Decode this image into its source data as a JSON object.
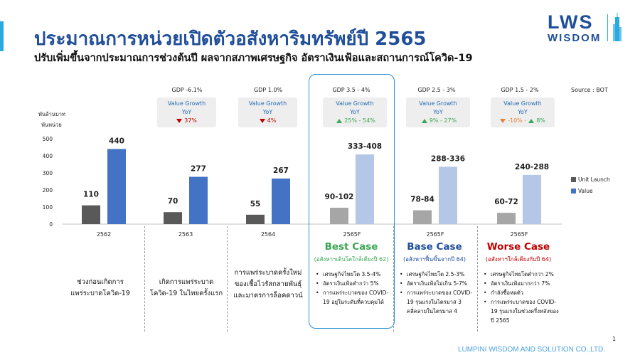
{
  "header": {
    "title": "ประมาณการหน่วยเปิดตัวอสังหาริมทรัพย์ปี 2565",
    "subtitle": "ปรับเพิ่มขึ้นจากประมาณการช่วงต้นปี ผลจากสภาพเศรษฐกิจ อัตราเงินเฟ้อและสถานการณ์โควิด-19"
  },
  "logo": {
    "line1": "LWS",
    "line2": "WISDOM"
  },
  "source": "Source : BOT",
  "unit_label": [
    "พันล้านบาท",
    "พันหน่วย"
  ],
  "gdp": [
    {
      "label": "GDP -6.1%",
      "l1": "Value Growth",
      "l2": "YoY",
      "value": "37%"
    },
    {
      "label": "GDP 1.0%",
      "l1": "Value Growth",
      "l2": "YoY",
      "value": "4%"
    },
    {
      "label": "GDP 3.5 - 4%",
      "l1": "Value Growth",
      "l2": "YoY",
      "value": "25% - 54%"
    },
    {
      "label": "GDP 2.5 - 3%",
      "l1": "Value Growth",
      "l2": "YoY",
      "value": "9% - 27%"
    },
    {
      "label": "GDP 1.5 - 2%",
      "l1": "Value Growth",
      "l2": "YoY",
      "value_a": "-10% -",
      "value_b": "8%"
    }
  ],
  "colors": {
    "unit_2562": "#595959",
    "value_2562": "#4472c4",
    "unit_forecast": "#a6a6a6",
    "value_forecast": "#b4c7e7",
    "best": "#3aa653",
    "base": "#3aa653",
    "worse": "#c00000",
    "title": "#1f4e9a"
  },
  "chart_data": {
    "type": "bar",
    "categories": [
      "2562",
      "2563",
      "2564",
      "2565F",
      "2565F",
      "2565F"
    ],
    "series": [
      {
        "name": "Unit Launch",
        "values": [
          110,
          70,
          55,
          96,
          81,
          66
        ],
        "labels": [
          "110",
          "70",
          "55",
          "90-102",
          "78-84",
          "60-72"
        ]
      },
      {
        "name": "Value",
        "values": [
          440,
          277,
          267,
          408,
          336,
          288
        ],
        "labels": [
          "440",
          "277",
          "267",
          "333-408",
          "288-336",
          "240-288"
        ]
      }
    ],
    "y_ticks": [
      "0",
      "100",
      "200",
      "300",
      "400",
      "500"
    ],
    "ylim": [
      0,
      500
    ],
    "legend_position": "right",
    "grid": false
  },
  "cases": [
    {
      "title": "Best Case",
      "sub": "(อสังหาฯเติบโตใกล้เคียงปี 62)"
    },
    {
      "title": "Base Case",
      "sub": "(อสังหาฯฟื้นขึ้นจากปี 64)"
    },
    {
      "title": "Worse Case",
      "sub": "(อสังหาฯใกล้เคียงกับปี 64)"
    }
  ],
  "col_texts": [
    [
      "ช่วงก่อนเกิดการ",
      "แพร่ระบาดโควิด-19"
    ],
    [
      "เกิดการแพร่ระบาด",
      "โควิด-19 ในไทยครั้งแรก"
    ],
    [
      "การแพร่ระบาดครั้งใหม่",
      "ของเชื้อไวรัสกลายพันธุ์",
      "และมาตรการล็อคดาวน์"
    ]
  ],
  "bullets": {
    "best": [
      "เศรษฐกิจไทยโต 3.5-4%",
      "อัตราเงินเฟ้อต่ำกว่า 5%",
      "การแพร่ระบาดของ COVID-19 อยู่ในระดับที่ควบคุมได้"
    ],
    "base": [
      "เศรษฐกิจไทยโต 2.5-3%",
      "อัตราเงินเฟ้อไม่เกิน 5-7%",
      "การแพร่ระบาดของ COVID-19 รุนแรงในไตรมาส 3 คลี่คลายในไตรมาส 4"
    ],
    "worse": [
      "เศรษฐกิจไทยโตต่ำกว่า 2%",
      "อัตราเงินเฟ้อมากกว่า 7%",
      "กำลังซื้อหดตัว",
      "การแพร่ระบาดของ COVID-19 รุนแรงในช่วงครึ่งหลังของปี 2565"
    ]
  },
  "footer": "LUMPINI WISDOM AND SOLUTION CO.,LTD.",
  "page_number": "1"
}
